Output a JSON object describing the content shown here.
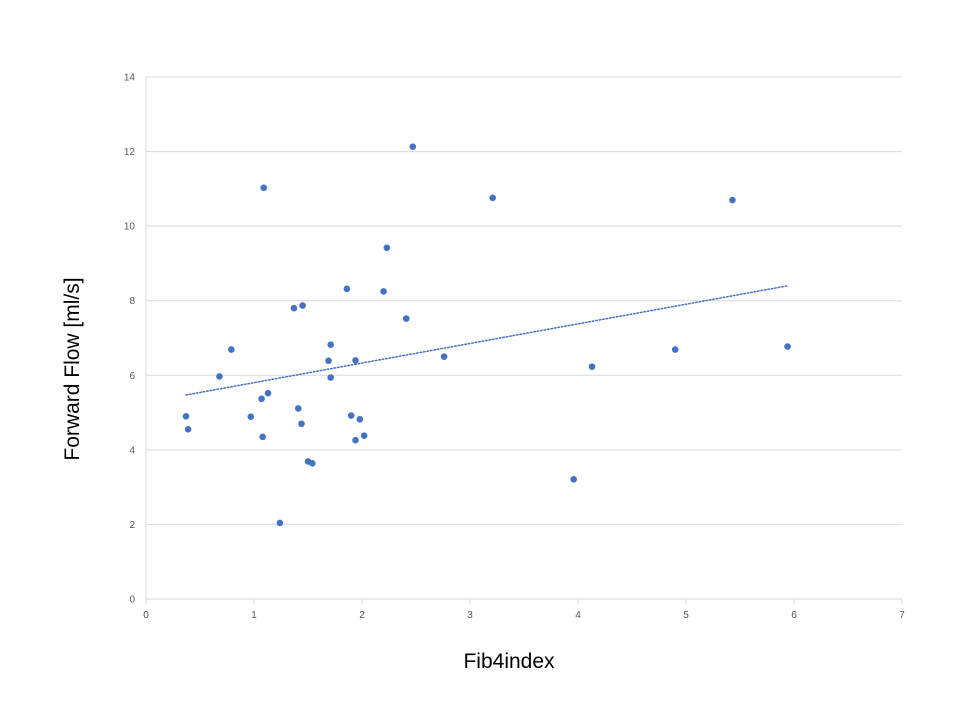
{
  "chart_data": {
    "type": "scatter",
    "title": "",
    "xlabel": "Fib4index",
    "ylabel": "Forward Flow [ml/s]",
    "xlim": [
      0,
      7
    ],
    "ylim": [
      0,
      14
    ],
    "xticks": [
      0,
      1,
      2,
      3,
      4,
      5,
      6,
      7
    ],
    "yticks": [
      0,
      2,
      4,
      6,
      8,
      10,
      12,
      14
    ],
    "x_tick_labels": [
      "0",
      "1",
      "2",
      "3",
      "4",
      "5",
      "6",
      "7"
    ],
    "y_tick_labels": [
      "0",
      "2",
      "4",
      "6",
      "8",
      "10",
      "12",
      "14"
    ],
    "grid": "horizontal",
    "legend": "none",
    "marker_color": "#4472C4",
    "series": [
      {
        "points": [
          {
            "x": 0.37,
            "y": 4.9
          },
          {
            "x": 0.39,
            "y": 4.55
          },
          {
            "x": 0.68,
            "y": 5.97
          },
          {
            "x": 0.79,
            "y": 6.69
          },
          {
            "x": 0.97,
            "y": 4.89
          },
          {
            "x": 1.07,
            "y": 5.37
          },
          {
            "x": 1.08,
            "y": 4.35
          },
          {
            "x": 1.09,
            "y": 11.03
          },
          {
            "x": 1.13,
            "y": 5.52
          },
          {
            "x": 1.24,
            "y": 2.04
          },
          {
            "x": 1.37,
            "y": 7.8
          },
          {
            "x": 1.41,
            "y": 5.11
          },
          {
            "x": 1.44,
            "y": 4.7
          },
          {
            "x": 1.45,
            "y": 7.87
          },
          {
            "x": 1.5,
            "y": 3.69
          },
          {
            "x": 1.54,
            "y": 3.64
          },
          {
            "x": 1.69,
            "y": 6.39
          },
          {
            "x": 1.71,
            "y": 6.82
          },
          {
            "x": 1.71,
            "y": 5.94
          },
          {
            "x": 1.86,
            "y": 8.32
          },
          {
            "x": 1.9,
            "y": 4.92
          },
          {
            "x": 1.94,
            "y": 6.4
          },
          {
            "x": 1.94,
            "y": 4.26
          },
          {
            "x": 1.98,
            "y": 4.82
          },
          {
            "x": 2.02,
            "y": 4.38
          },
          {
            "x": 2.2,
            "y": 8.25
          },
          {
            "x": 2.23,
            "y": 9.42
          },
          {
            "x": 2.41,
            "y": 7.52
          },
          {
            "x": 2.47,
            "y": 12.13
          },
          {
            "x": 2.76,
            "y": 6.5
          },
          {
            "x": 3.21,
            "y": 10.76
          },
          {
            "x": 3.96,
            "y": 3.21
          },
          {
            "x": 4.13,
            "y": 6.23
          },
          {
            "x": 4.9,
            "y": 6.69
          },
          {
            "x": 5.43,
            "y": 10.7
          },
          {
            "x": 5.94,
            "y": 6.77
          }
        ]
      }
    ],
    "trendline": {
      "type": "linear",
      "style": "dotted",
      "x": [
        0.37,
        5.94
      ],
      "y": [
        5.47,
        8.4
      ]
    }
  }
}
